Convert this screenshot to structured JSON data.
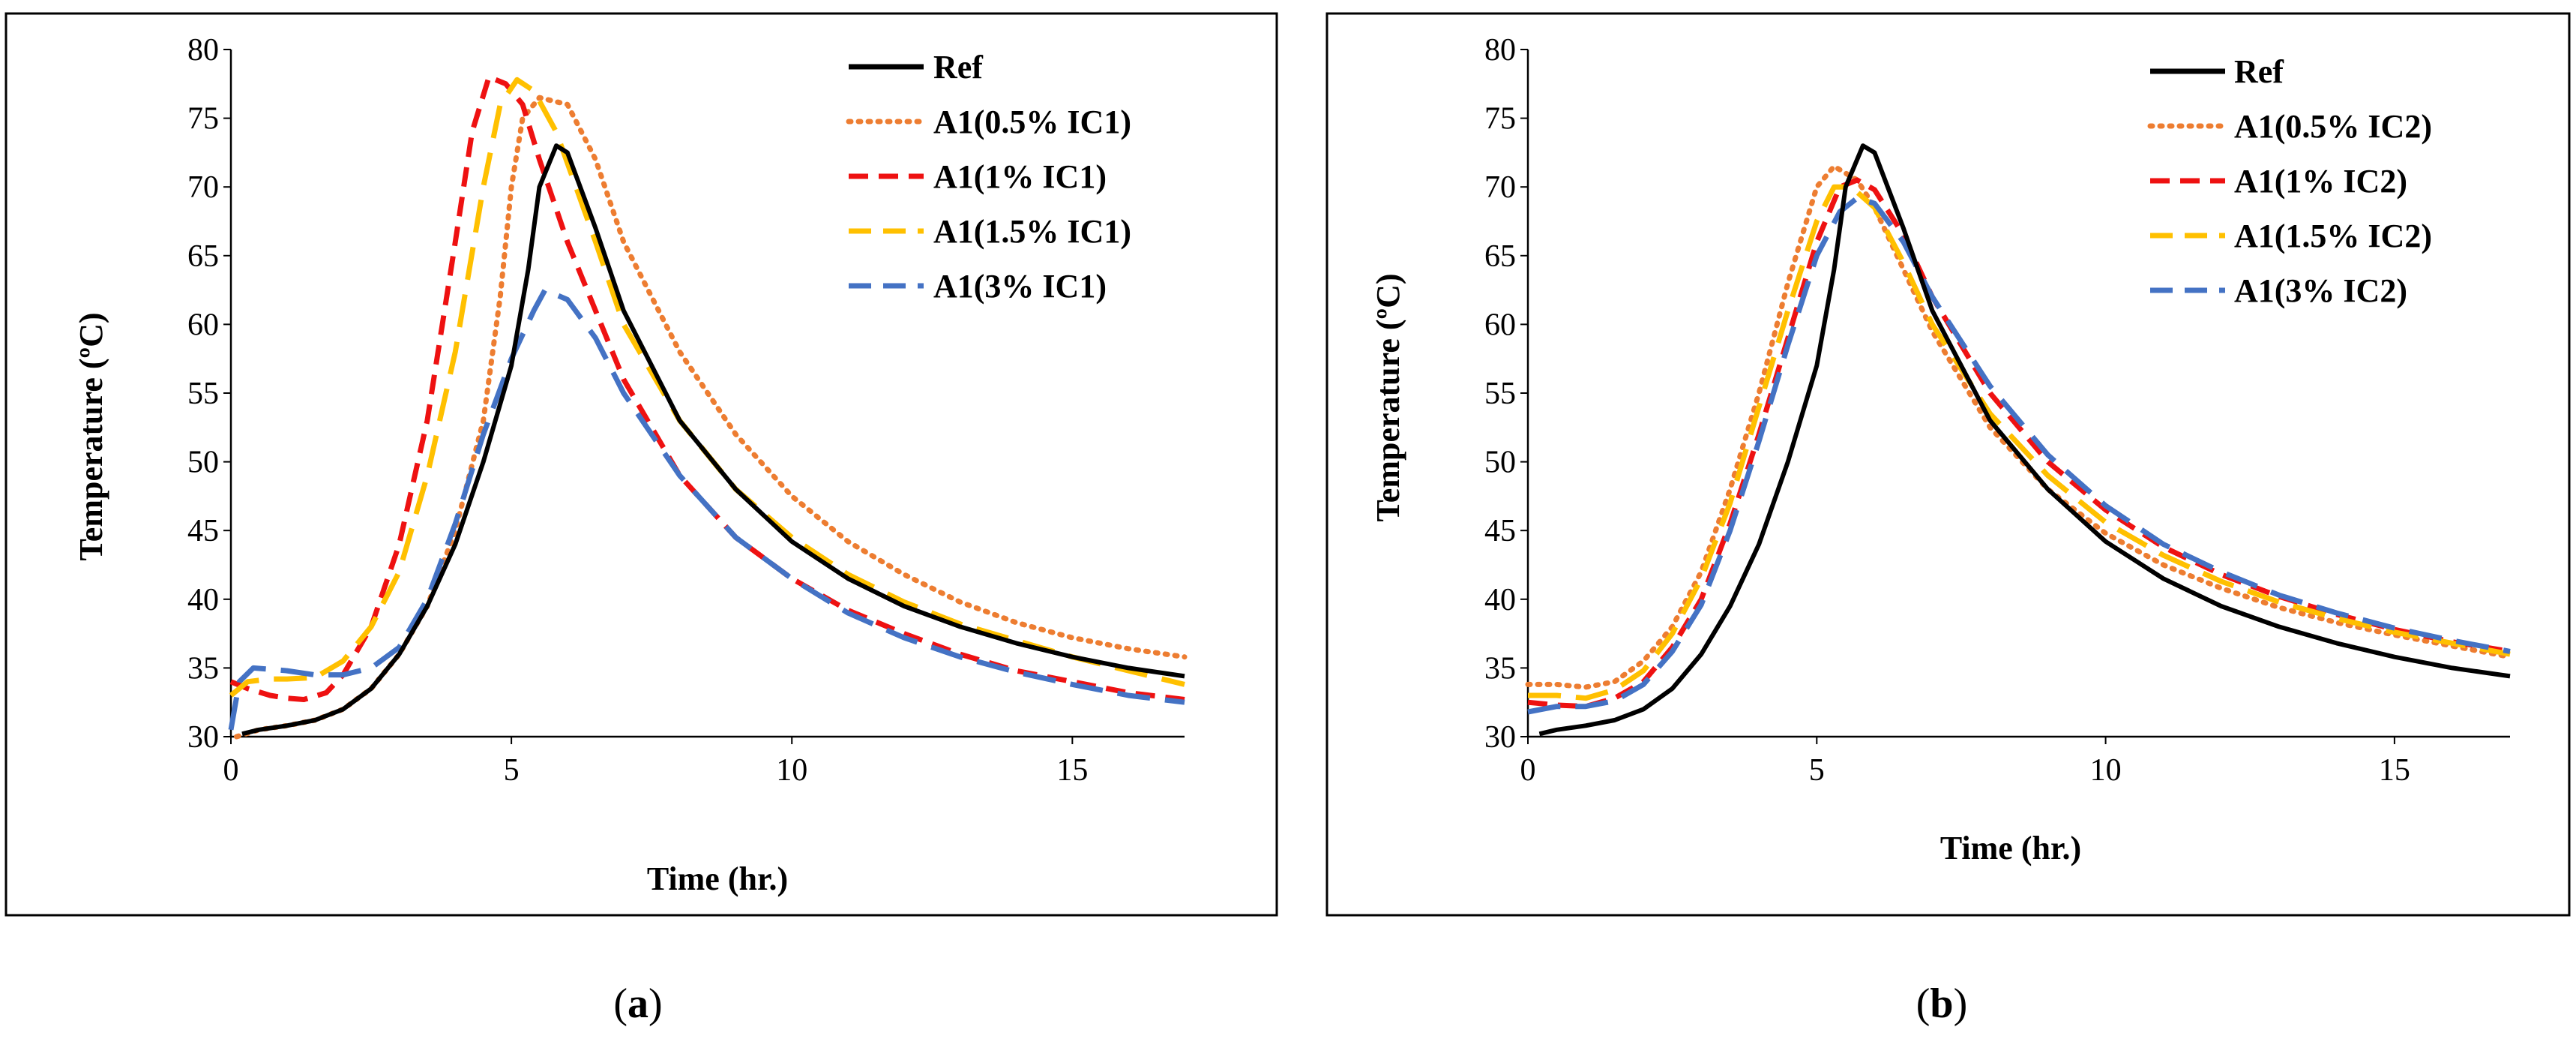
{
  "chart_data": [
    {
      "type": "line",
      "id": "a",
      "caption": "a",
      "title": "",
      "xlabel": "Time (hr.)",
      "ylabel": "Temperature (ºC)",
      "xlim": [
        0,
        17
      ],
      "ylim": [
        30,
        80
      ],
      "xticks": [
        0,
        5,
        10,
        15
      ],
      "yticks": [
        30,
        35,
        40,
        45,
        50,
        55,
        60,
        65,
        70,
        75,
        80
      ],
      "legend_position": "top-right",
      "grid": false,
      "series": [
        {
          "name": "Ref",
          "color": "#000000",
          "dash": "solid",
          "points": [
            [
              0.2,
              30.2
            ],
            [
              0.5,
              30.5
            ],
            [
              1,
              30.8
            ],
            [
              1.5,
              31.2
            ],
            [
              2,
              32
            ],
            [
              2.5,
              33.5
            ],
            [
              3,
              36
            ],
            [
              3.5,
              39.5
            ],
            [
              4,
              44
            ],
            [
              4.5,
              50
            ],
            [
              5,
              57
            ],
            [
              5.3,
              64
            ],
            [
              5.5,
              70
            ],
            [
              5.8,
              73
            ],
            [
              6,
              72.5
            ],
            [
              6.5,
              67
            ],
            [
              7,
              61
            ],
            [
              8,
              53
            ],
            [
              9,
              48
            ],
            [
              10,
              44.2
            ],
            [
              11,
              41.5
            ],
            [
              12,
              39.5
            ],
            [
              13,
              38
            ],
            [
              14,
              36.8
            ],
            [
              15,
              35.8
            ],
            [
              16,
              35
            ],
            [
              17,
              34.4
            ]
          ]
        },
        {
          "name": "A1(0.5% IC1)",
          "color": "#ED7D31",
          "dash": "dot",
          "points": [
            [
              0.1,
              30
            ],
            [
              0.5,
              30.5
            ],
            [
              1,
              30.8
            ],
            [
              1.5,
              31.2
            ],
            [
              2,
              32
            ],
            [
              2.5,
              33.5
            ],
            [
              3,
              36
            ],
            [
              3.5,
              39.5
            ],
            [
              4,
              45
            ],
            [
              4.5,
              53
            ],
            [
              4.8,
              62
            ],
            [
              5,
              70
            ],
            [
              5.2,
              75
            ],
            [
              5.5,
              76.5
            ],
            [
              6,
              76
            ],
            [
              6.5,
              72
            ],
            [
              7,
              66
            ],
            [
              8,
              58
            ],
            [
              9,
              52
            ],
            [
              10,
              47.5
            ],
            [
              11,
              44.2
            ],
            [
              12,
              41.8
            ],
            [
              13,
              39.8
            ],
            [
              14,
              38.3
            ],
            [
              15,
              37.2
            ],
            [
              16,
              36.4
            ],
            [
              17,
              35.8
            ]
          ]
        },
        {
          "name": "A1(1% IC1)",
          "color": "#EE1111",
          "dash": "dash",
          "points": [
            [
              0,
              34
            ],
            [
              0.3,
              33.5
            ],
            [
              0.7,
              33
            ],
            [
              1,
              32.8
            ],
            [
              1.3,
              32.7
            ],
            [
              1.7,
              33.2
            ],
            [
              2,
              34.5
            ],
            [
              2.5,
              38
            ],
            [
              3,
              44
            ],
            [
              3.5,
              53
            ],
            [
              4,
              66
            ],
            [
              4.3,
              74
            ],
            [
              4.6,
              78
            ],
            [
              4.9,
              77.5
            ],
            [
              5.2,
              76
            ],
            [
              5.5,
              72
            ],
            [
              6,
              66
            ],
            [
              7,
              56
            ],
            [
              8,
              49
            ],
            [
              9,
              44.5
            ],
            [
              10,
              41.5
            ],
            [
              11,
              39.2
            ],
            [
              12,
              37.5
            ],
            [
              13,
              36
            ],
            [
              14,
              34.8
            ],
            [
              15,
              34
            ],
            [
              16,
              33.2
            ],
            [
              17,
              32.7
            ]
          ]
        },
        {
          "name": "A1(1.5% IC1)",
          "color": "#FFC000",
          "dash": "longdash",
          "points": [
            [
              0,
              33
            ],
            [
              0.3,
              34
            ],
            [
              0.7,
              34.2
            ],
            [
              1,
              34.2
            ],
            [
              1.5,
              34.3
            ],
            [
              2,
              35.5
            ],
            [
              2.5,
              38
            ],
            [
              3,
              42
            ],
            [
              3.5,
              49
            ],
            [
              4,
              58
            ],
            [
              4.5,
              70
            ],
            [
              4.8,
              76
            ],
            [
              5.1,
              77.8
            ],
            [
              5.4,
              77
            ],
            [
              5.8,
              74
            ],
            [
              6.5,
              66
            ],
            [
              7,
              60
            ],
            [
              8,
              53
            ],
            [
              9,
              48
            ],
            [
              10,
              44.5
            ],
            [
              11,
              41.8
            ],
            [
              12,
              39.8
            ],
            [
              13,
              38.2
            ],
            [
              14,
              37
            ],
            [
              15,
              35.8
            ],
            [
              16,
              34.8
            ],
            [
              17,
              33.8
            ]
          ]
        },
        {
          "name": "A1(3% IC1)",
          "color": "#4472C4",
          "dash": "longdash",
          "points": [
            [
              0,
              30.5
            ],
            [
              0.15,
              34
            ],
            [
              0.4,
              35
            ],
            [
              1,
              34.8
            ],
            [
              1.5,
              34.5
            ],
            [
              2,
              34.5
            ],
            [
              2.5,
              35
            ],
            [
              3,
              36.5
            ],
            [
              3.5,
              40
            ],
            [
              4,
              45.5
            ],
            [
              4.5,
              52
            ],
            [
              5,
              57.5
            ],
            [
              5.4,
              61
            ],
            [
              5.6,
              62.5
            ],
            [
              6,
              61.8
            ],
            [
              6.5,
              59
            ],
            [
              7,
              55
            ],
            [
              8,
              49
            ],
            [
              9,
              44.5
            ],
            [
              10,
              41.5
            ],
            [
              11,
              39
            ],
            [
              12,
              37.2
            ],
            [
              13,
              35.8
            ],
            [
              14,
              34.7
            ],
            [
              15,
              33.8
            ],
            [
              16,
              33
            ],
            [
              17,
              32.5
            ]
          ]
        }
      ]
    },
    {
      "type": "line",
      "id": "b",
      "caption": "b",
      "title": "",
      "xlabel": "Time (hr.)",
      "ylabel": "Temperature (ºC)",
      "xlim": [
        0,
        17
      ],
      "ylim": [
        30,
        80
      ],
      "xticks": [
        0,
        5,
        10,
        15
      ],
      "yticks": [
        30,
        35,
        40,
        45,
        50,
        55,
        60,
        65,
        70,
        75,
        80
      ],
      "legend_position": "top-right",
      "grid": false,
      "series": [
        {
          "name": "Ref",
          "color": "#000000",
          "dash": "solid",
          "points": [
            [
              0.2,
              30.2
            ],
            [
              0.5,
              30.5
            ],
            [
              1,
              30.8
            ],
            [
              1.5,
              31.2
            ],
            [
              2,
              32
            ],
            [
              2.5,
              33.5
            ],
            [
              3,
              36
            ],
            [
              3.5,
              39.5
            ],
            [
              4,
              44
            ],
            [
              4.5,
              50
            ],
            [
              5,
              57
            ],
            [
              5.3,
              64
            ],
            [
              5.5,
              70
            ],
            [
              5.8,
              73
            ],
            [
              6,
              72.5
            ],
            [
              6.5,
              67
            ],
            [
              7,
              61
            ],
            [
              8,
              53
            ],
            [
              9,
              48
            ],
            [
              10,
              44.2
            ],
            [
              11,
              41.5
            ],
            [
              12,
              39.5
            ],
            [
              13,
              38
            ],
            [
              14,
              36.8
            ],
            [
              15,
              35.8
            ],
            [
              16,
              35
            ],
            [
              17,
              34.4
            ]
          ]
        },
        {
          "name": "A1(0.5% IC2)",
          "color": "#ED7D31",
          "dash": "dot",
          "points": [
            [
              0,
              33.8
            ],
            [
              0.5,
              33.8
            ],
            [
              1,
              33.6
            ],
            [
              1.5,
              34
            ],
            [
              2,
              35.5
            ],
            [
              2.5,
              38
            ],
            [
              3,
              42
            ],
            [
              3.5,
              48
            ],
            [
              4,
              55
            ],
            [
              4.5,
              63
            ],
            [
              5,
              70
            ],
            [
              5.3,
              71.5
            ],
            [
              5.7,
              70.5
            ],
            [
              6,
              68.5
            ],
            [
              6.5,
              64
            ],
            [
              7,
              59.5
            ],
            [
              8,
              52.5
            ],
            [
              9,
              48
            ],
            [
              10,
              44.8
            ],
            [
              11,
              42.5
            ],
            [
              12,
              40.8
            ],
            [
              13,
              39.4
            ],
            [
              14,
              38.3
            ],
            [
              15,
              37.4
            ],
            [
              16,
              36.6
            ],
            [
              17,
              35.8
            ]
          ]
        },
        {
          "name": "A1(1% IC2)",
          "color": "#EE1111",
          "dash": "dash",
          "points": [
            [
              0,
              32.5
            ],
            [
              0.5,
              32.3
            ],
            [
              1,
              32.2
            ],
            [
              1.5,
              32.8
            ],
            [
              2,
              34
            ],
            [
              2.5,
              36.5
            ],
            [
              3,
              40
            ],
            [
              3.5,
              45.5
            ],
            [
              4,
              52
            ],
            [
              4.5,
              59
            ],
            [
              5,
              66
            ],
            [
              5.4,
              70
            ],
            [
              5.7,
              70.5
            ],
            [
              6,
              69.8
            ],
            [
              6.5,
              66.5
            ],
            [
              7,
              62
            ],
            [
              8,
              55
            ],
            [
              9,
              50
            ],
            [
              10,
              46.5
            ],
            [
              11,
              43.8
            ],
            [
              12,
              41.8
            ],
            [
              13,
              40.2
            ],
            [
              14,
              38.9
            ],
            [
              15,
              37.8
            ],
            [
              16,
              36.9
            ],
            [
              17,
              36.2
            ]
          ]
        },
        {
          "name": "A1(1.5% IC2)",
          "color": "#FFC000",
          "dash": "longdash",
          "points": [
            [
              0,
              33
            ],
            [
              0.5,
              33
            ],
            [
              1,
              32.8
            ],
            [
              1.5,
              33.4
            ],
            [
              2,
              34.8
            ],
            [
              2.5,
              37.5
            ],
            [
              3,
              41.5
            ],
            [
              3.5,
              47
            ],
            [
              4,
              54
            ],
            [
              4.5,
              61
            ],
            [
              5,
              67.5
            ],
            [
              5.3,
              70
            ],
            [
              5.6,
              70
            ],
            [
              6,
              68.5
            ],
            [
              6.5,
              64.5
            ],
            [
              7,
              60
            ],
            [
              8,
              53.5
            ],
            [
              9,
              49
            ],
            [
              10,
              45.6
            ],
            [
              11,
              43.2
            ],
            [
              12,
              41.3
            ],
            [
              13,
              39.8
            ],
            [
              14,
              38.6
            ],
            [
              15,
              37.6
            ],
            [
              16,
              36.8
            ],
            [
              17,
              36
            ]
          ]
        },
        {
          "name": "A1(3% IC2)",
          "color": "#4472C4",
          "dash": "longdash",
          "points": [
            [
              0,
              31.8
            ],
            [
              0.5,
              32.2
            ],
            [
              1,
              32.2
            ],
            [
              1.5,
              32.6
            ],
            [
              2,
              33.8
            ],
            [
              2.5,
              36.2
            ],
            [
              3,
              39.6
            ],
            [
              3.5,
              45
            ],
            [
              4,
              51.5
            ],
            [
              4.5,
              58.5
            ],
            [
              5,
              65
            ],
            [
              5.4,
              68.2
            ],
            [
              5.7,
              69.2
            ],
            [
              6,
              68.8
            ],
            [
              6.5,
              66
            ],
            [
              7,
              62
            ],
            [
              8,
              55.5
            ],
            [
              9,
              50.5
            ],
            [
              10,
              46.8
            ],
            [
              11,
              44
            ],
            [
              12,
              42
            ],
            [
              13,
              40.3
            ],
            [
              14,
              39
            ],
            [
              15,
              37.9
            ],
            [
              16,
              37
            ],
            [
              17,
              36.2
            ]
          ]
        }
      ]
    }
  ]
}
